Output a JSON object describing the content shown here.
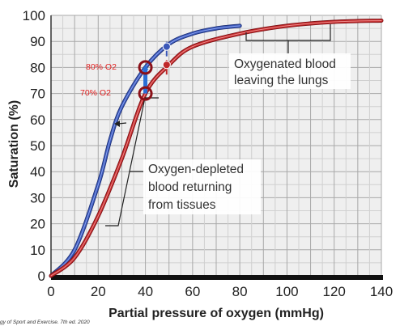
{
  "chart_data": {
    "type": "line",
    "title": "",
    "xlabel": "Partial pressure of oxygen (mmHg)",
    "ylabel": "Saturation (%)",
    "xlim": [
      0,
      140
    ],
    "ylim": [
      0,
      100
    ],
    "xticks": [
      0,
      20,
      40,
      60,
      80,
      100,
      120,
      140
    ],
    "yticks": [
      0,
      10,
      20,
      30,
      40,
      50,
      60,
      70,
      80,
      90,
      100
    ],
    "grid": true,
    "series": [
      {
        "color": "#3a57b8",
        "points": [
          [
            0,
            0
          ],
          [
            10,
            10
          ],
          [
            20,
            35
          ],
          [
            25,
            52
          ],
          [
            30,
            65
          ],
          [
            40,
            80
          ],
          [
            50,
            89
          ],
          [
            60,
            93
          ],
          [
            70,
            95
          ],
          [
            80,
            96
          ]
        ]
      },
      {
        "color": "#c0282a",
        "points": [
          [
            0,
            0
          ],
          [
            10,
            7
          ],
          [
            20,
            23
          ],
          [
            30,
            45
          ],
          [
            40,
            70
          ],
          [
            50,
            81
          ],
          [
            60,
            88
          ],
          [
            80,
            93
          ],
          [
            100,
            96
          ],
          [
            120,
            97.5
          ],
          [
            140,
            98
          ]
        ]
      }
    ],
    "markers": [
      {
        "x": 40,
        "y": 80,
        "label": "80% O2",
        "color": "#8a1018"
      },
      {
        "x": 40,
        "y": 70,
        "label": "70% O2",
        "color": "#8a1018"
      },
      {
        "x": 49,
        "y": 88,
        "color": "#3a57b8"
      },
      {
        "x": 49,
        "y": 81,
        "color": "#c0282a"
      }
    ],
    "annotations": [
      {
        "text_lines": [
          "Oxygenated blood",
          "leaving the lungs"
        ]
      },
      {
        "text_lines": [
          "Oxygen-depleted",
          "blood returning",
          "from tissues"
        ]
      }
    ],
    "credit": "gy of Sport and Exercise. 7th ed. 2020"
  }
}
